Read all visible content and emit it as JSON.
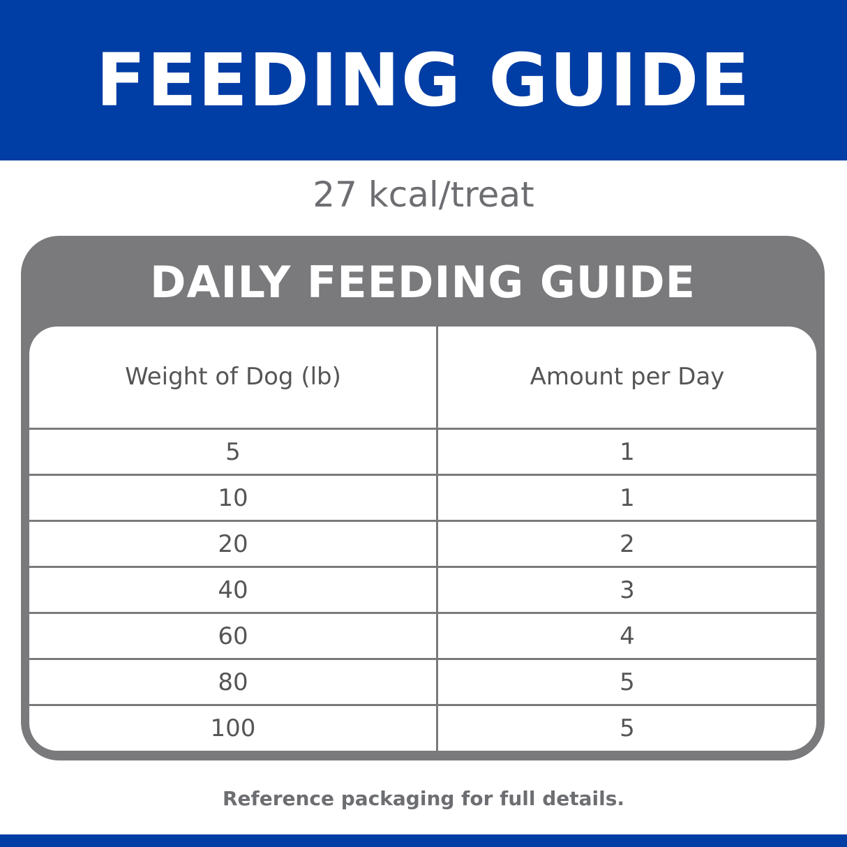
{
  "header": {
    "title": "FEEDING GUIDE"
  },
  "subtitle": "27 kcal/treat",
  "table": {
    "title": "DAILY FEEDING GUIDE",
    "columns": [
      "Weight of Dog (lb)",
      "Amount per Day"
    ],
    "rows": [
      [
        "5",
        "1"
      ],
      [
        "10",
        "1"
      ],
      [
        "20",
        "2"
      ],
      [
        "40",
        "3"
      ],
      [
        "60",
        "4"
      ],
      [
        "80",
        "5"
      ],
      [
        "100",
        "5"
      ]
    ]
  },
  "footnote": "Reference packaging for full details."
}
